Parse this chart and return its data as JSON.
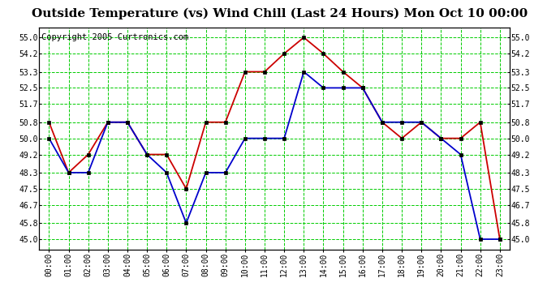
{
  "title": "Outside Temperature (vs) Wind Chill (Last 24 Hours) Mon Oct 10 00:00",
  "copyright": "Copyright 2005 Curtronics.com",
  "x_labels": [
    "00:00",
    "01:00",
    "02:00",
    "03:00",
    "04:00",
    "05:00",
    "06:00",
    "07:00",
    "08:00",
    "09:00",
    "10:00",
    "11:00",
    "12:00",
    "13:00",
    "14:00",
    "15:00",
    "16:00",
    "17:00",
    "18:00",
    "19:00",
    "20:00",
    "21:00",
    "22:00",
    "23:00"
  ],
  "outside_temp": [
    50.0,
    48.3,
    48.3,
    50.8,
    50.8,
    49.2,
    48.3,
    45.8,
    48.3,
    48.3,
    50.0,
    50.0,
    50.0,
    53.3,
    52.5,
    52.5,
    52.5,
    50.8,
    50.8,
    50.8,
    50.0,
    49.2,
    45.0,
    45.0
  ],
  "wind_chill": [
    50.8,
    48.3,
    49.2,
    50.8,
    50.8,
    49.2,
    49.2,
    47.5,
    50.8,
    50.8,
    53.3,
    53.3,
    54.2,
    55.0,
    54.2,
    53.3,
    52.5,
    50.8,
    50.0,
    50.8,
    50.0,
    50.0,
    50.8,
    45.0
  ],
  "ylim": [
    44.5,
    55.5
  ],
  "yticks": [
    45.0,
    45.8,
    46.7,
    47.5,
    48.3,
    49.2,
    50.0,
    50.8,
    51.7,
    52.5,
    53.3,
    54.2,
    55.0
  ],
  "outside_temp_color": "#0000cc",
  "wind_chill_color": "#cc0000",
  "bg_color": "#ffffff",
  "plot_bg_color": "#ffffff",
  "grid_color": "#00cc00",
  "title_color": "#000000",
  "title_fontsize": 11,
  "copyright_fontsize": 7.5,
  "tick_fontsize": 7,
  "linewidth": 1.3,
  "markersize": 3.5
}
